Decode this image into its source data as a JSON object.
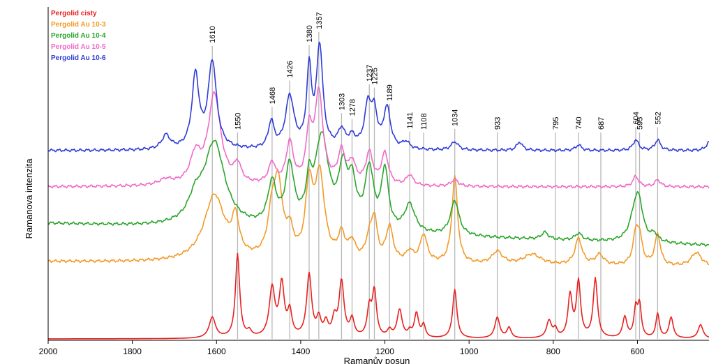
{
  "chart_data": {
    "type": "line",
    "xlabel": "Ramanův posun",
    "ylabel": "Ramanova intenzita",
    "xlim": [
      2000,
      430
    ],
    "x_reversed": true,
    "x_ticks": [
      2000,
      1800,
      1600,
      1400,
      1200,
      1000,
      800,
      600
    ],
    "x_tick_labels": [
      "2000",
      "1800",
      "1600",
      "1400",
      "1200",
      "1000",
      "800",
      "600"
    ],
    "y_ticks_shown": false,
    "peak_positions": [
      1610,
      1550,
      1468,
      1426,
      1380,
      1357,
      1303,
      1278,
      1237,
      1225,
      1189,
      1141,
      1108,
      1034,
      933,
      795,
      740,
      687,
      604,
      595,
      552
    ],
    "peak_labels": [
      "1610",
      "1550",
      "1468",
      "1426",
      "1380",
      "1357",
      "1303",
      "1278",
      "1237",
      "1225",
      "1189",
      "1141",
      "1108",
      "1034",
      "933",
      "795",
      "740",
      "687",
      "604",
      "595",
      "552"
    ],
    "peak_line_color": "#b8b8b8",
    "series": [
      {
        "name": "Pergolid cisty",
        "color": "#e8201e",
        "baseline": 0,
        "slope": 0,
        "peaks": [
          [
            1610,
            30,
            9
          ],
          [
            1550,
            120,
            6
          ],
          [
            1522,
            8,
            6
          ],
          [
            1468,
            70,
            8
          ],
          [
            1445,
            75,
            7
          ],
          [
            1426,
            35,
            6
          ],
          [
            1380,
            90,
            7
          ],
          [
            1357,
            25,
            6
          ],
          [
            1340,
            20,
            6
          ],
          [
            1320,
            25,
            6
          ],
          [
            1303,
            80,
            7
          ],
          [
            1278,
            25,
            6
          ],
          [
            1237,
            40,
            6
          ],
          [
            1225,
            65,
            6
          ],
          [
            1189,
            10,
            6
          ],
          [
            1165,
            40,
            7
          ],
          [
            1141,
            8,
            5
          ],
          [
            1125,
            35,
            6
          ],
          [
            1108,
            18,
            5
          ],
          [
            1034,
            70,
            6
          ],
          [
            933,
            30,
            7
          ],
          [
            905,
            15,
            6
          ],
          [
            810,
            25,
            7
          ],
          [
            795,
            12,
            5
          ],
          [
            760,
            60,
            6
          ],
          [
            740,
            80,
            6
          ],
          [
            700,
            85,
            6
          ],
          [
            630,
            30,
            6
          ],
          [
            604,
            40,
            5
          ],
          [
            595,
            45,
            5
          ],
          [
            552,
            35,
            5
          ],
          [
            520,
            30,
            6
          ],
          [
            450,
            20,
            7
          ]
        ]
      },
      {
        "name": "Pergolid Au 10-3",
        "color": "#f39a26",
        "baseline": 102,
        "slope": 0.005,
        "peaks": [
          [
            1605,
            95,
            30
          ],
          [
            1555,
            50,
            10
          ],
          [
            1468,
            60,
            12
          ],
          [
            1453,
            95,
            12
          ],
          [
            1426,
            35,
            10
          ],
          [
            1380,
            100,
            10
          ],
          [
            1355,
            120,
            14
          ],
          [
            1303,
            35,
            10
          ],
          [
            1278,
            25,
            10
          ],
          [
            1237,
            30,
            10
          ],
          [
            1225,
            55,
            8
          ],
          [
            1189,
            50,
            10
          ],
          [
            1141,
            15,
            10
          ],
          [
            1108,
            40,
            10
          ],
          [
            1034,
            125,
            8
          ],
          [
            933,
            18,
            15
          ],
          [
            850,
            15,
            25
          ],
          [
            740,
            38,
            10
          ],
          [
            690,
            15,
            12
          ],
          [
            604,
            40,
            8
          ],
          [
            595,
            35,
            8
          ],
          [
            552,
            45,
            8
          ],
          [
            460,
            20,
            15
          ]
        ]
      },
      {
        "name": "Pergolid Au 10-4",
        "color": "#2aa52a",
        "baseline": 137,
        "slope": 0.02,
        "peaks": [
          [
            1650,
            30,
            20
          ],
          [
            1605,
            120,
            30
          ],
          [
            1468,
            60,
            12
          ],
          [
            1426,
            85,
            12
          ],
          [
            1380,
            50,
            8
          ],
          [
            1350,
            130,
            20
          ],
          [
            1300,
            75,
            12
          ],
          [
            1278,
            60,
            12
          ],
          [
            1237,
            85,
            12
          ],
          [
            1200,
            85,
            10
          ],
          [
            1141,
            40,
            15
          ],
          [
            1034,
            50,
            12
          ],
          [
            820,
            10,
            10
          ],
          [
            740,
            10,
            10
          ],
          [
            604,
            50,
            15
          ],
          [
            595,
            30,
            10
          ],
          [
            560,
            10,
            10
          ]
        ]
      },
      {
        "name": "Pergolid Au 10-5",
        "color": "#f06ac8",
        "baseline": 220,
        "slope": 0,
        "peaks": [
          [
            1720,
            8,
            20
          ],
          [
            1650,
            40,
            15
          ],
          [
            1605,
            130,
            18
          ],
          [
            1550,
            25,
            10
          ],
          [
            1468,
            30,
            10
          ],
          [
            1426,
            60,
            10
          ],
          [
            1380,
            70,
            8
          ],
          [
            1357,
            130,
            12
          ],
          [
            1303,
            45,
            10
          ],
          [
            1278,
            30,
            10
          ],
          [
            1237,
            45,
            10
          ],
          [
            1200,
            45,
            10
          ],
          [
            1141,
            15,
            10
          ],
          [
            1034,
            10,
            10
          ],
          [
            604,
            15,
            8
          ],
          [
            552,
            10,
            8
          ]
        ]
      },
      {
        "name": "Pergolid Au 10-6",
        "color": "#2e3bd8",
        "baseline": 272,
        "slope": 0,
        "peaks": [
          [
            1720,
            20,
            12
          ],
          [
            1650,
            105,
            10
          ],
          [
            1610,
            125,
            12
          ],
          [
            1470,
            38,
            8
          ],
          [
            1426,
            75,
            12
          ],
          [
            1380,
            110,
            7
          ],
          [
            1355,
            145,
            9
          ],
          [
            1303,
            25,
            10
          ],
          [
            1278,
            15,
            10
          ],
          [
            1240,
            62,
            10
          ],
          [
            1225,
            45,
            8
          ],
          [
            1195,
            58,
            10
          ],
          [
            1150,
            10,
            10
          ],
          [
            1034,
            12,
            10
          ],
          [
            880,
            12,
            8
          ],
          [
            740,
            8,
            8
          ],
          [
            604,
            15,
            8
          ],
          [
            552,
            15,
            8
          ],
          [
            430,
            12,
            8
          ]
        ]
      }
    ]
  }
}
